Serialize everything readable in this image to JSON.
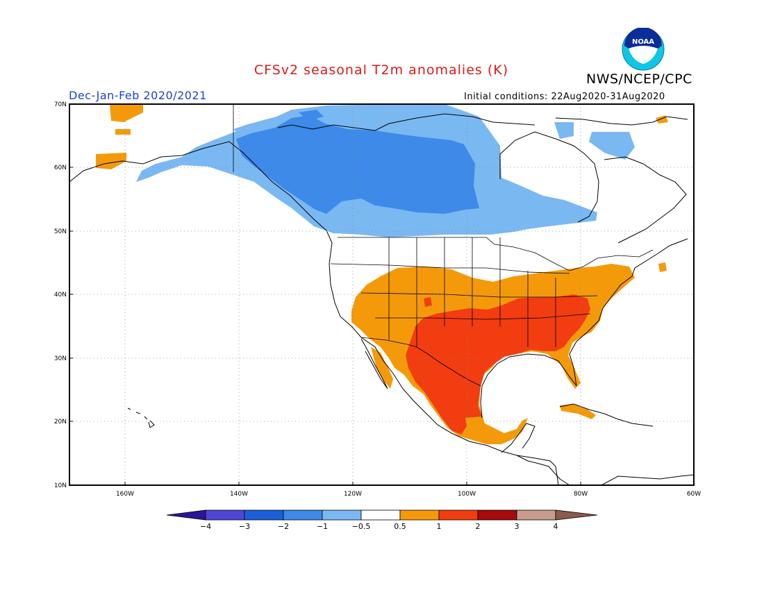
{
  "header": {
    "title": "CFSv2 seasonal T2m anomalies (K)",
    "agency": "NWS/NCEP/CPC",
    "season": "Dec-Jan-Feb 2020/2021",
    "initial_conditions": "Initial conditions: 22Aug2020-31Aug2020",
    "logo_text": "NOAA"
  },
  "axes": {
    "lat_labels": [
      "70N",
      "60N",
      "50N",
      "40N",
      "30N",
      "20N",
      "10N"
    ],
    "lon_labels": [
      "160W",
      "140W",
      "120W",
      "100W",
      "80W",
      "60W"
    ]
  },
  "colorbar": {
    "labels": [
      "-4",
      "-3",
      "-2",
      "-1",
      "-0.5",
      "0.5",
      "1",
      "2",
      "3",
      "4"
    ],
    "colors": [
      "#2b1597",
      "#4f46d6",
      "#1d5fd8",
      "#3d8ae8",
      "#7ab8f2",
      "#ffffff",
      "#f49a0a",
      "#f23d10",
      "#a50b0b",
      "#c79c8c",
      "#8a5a4a"
    ]
  },
  "anomaly_regions": [
    {
      "region": "Western and central Canada",
      "category": "-2 to -1"
    },
    {
      "region": "Alaska and eastern Canada",
      "category": "-1 to -0.5"
    },
    {
      "region": "Southern and eastern US",
      "category": "0.5 to 1"
    },
    {
      "region": "South-central US, Southeast and Mexico",
      "category": "1 to 2"
    }
  ]
}
